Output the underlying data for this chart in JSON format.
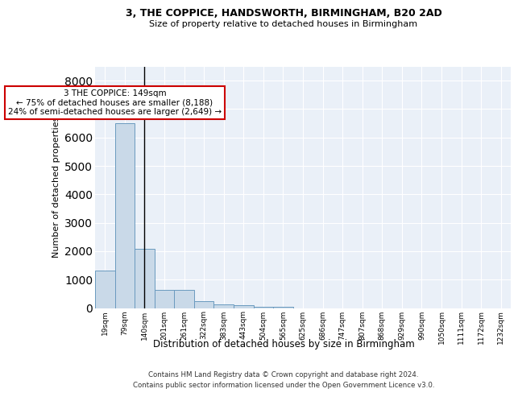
{
  "title1": "3, THE COPPICE, HANDSWORTH, BIRMINGHAM, B20 2AD",
  "title2": "Size of property relative to detached houses in Birmingham",
  "xlabel": "Distribution of detached houses by size in Birmingham",
  "ylabel": "Number of detached properties",
  "categories": [
    "19sqm",
    "79sqm",
    "140sqm",
    "201sqm",
    "261sqm",
    "322sqm",
    "383sqm",
    "443sqm",
    "504sqm",
    "565sqm",
    "625sqm",
    "686sqm",
    "747sqm",
    "807sqm",
    "868sqm",
    "929sqm",
    "990sqm",
    "1050sqm",
    "1111sqm",
    "1172sqm",
    "1232sqm"
  ],
  "bar_values": [
    1320,
    6500,
    2080,
    630,
    630,
    245,
    130,
    90,
    55,
    55,
    0,
    0,
    0,
    0,
    0,
    0,
    0,
    0,
    0,
    0,
    0
  ],
  "bar_color": "#c9d9e8",
  "bar_edge_color": "#6a9abf",
  "vline_x_idx": 2,
  "vline_color": "black",
  "annotation_text": "3 THE COPPICE: 149sqm\n← 75% of detached houses are smaller (8,188)\n24% of semi-detached houses are larger (2,649) →",
  "annotation_box_color": "#ffffff",
  "annotation_box_edge": "#cc0000",
  "ylim": [
    0,
    8500
  ],
  "yticks": [
    0,
    1000,
    2000,
    3000,
    4000,
    5000,
    6000,
    7000,
    8000
  ],
  "bg_color": "#eaf0f8",
  "footer1": "Contains HM Land Registry data © Crown copyright and database right 2024.",
  "footer2": "Contains public sector information licensed under the Open Government Licence v3.0."
}
